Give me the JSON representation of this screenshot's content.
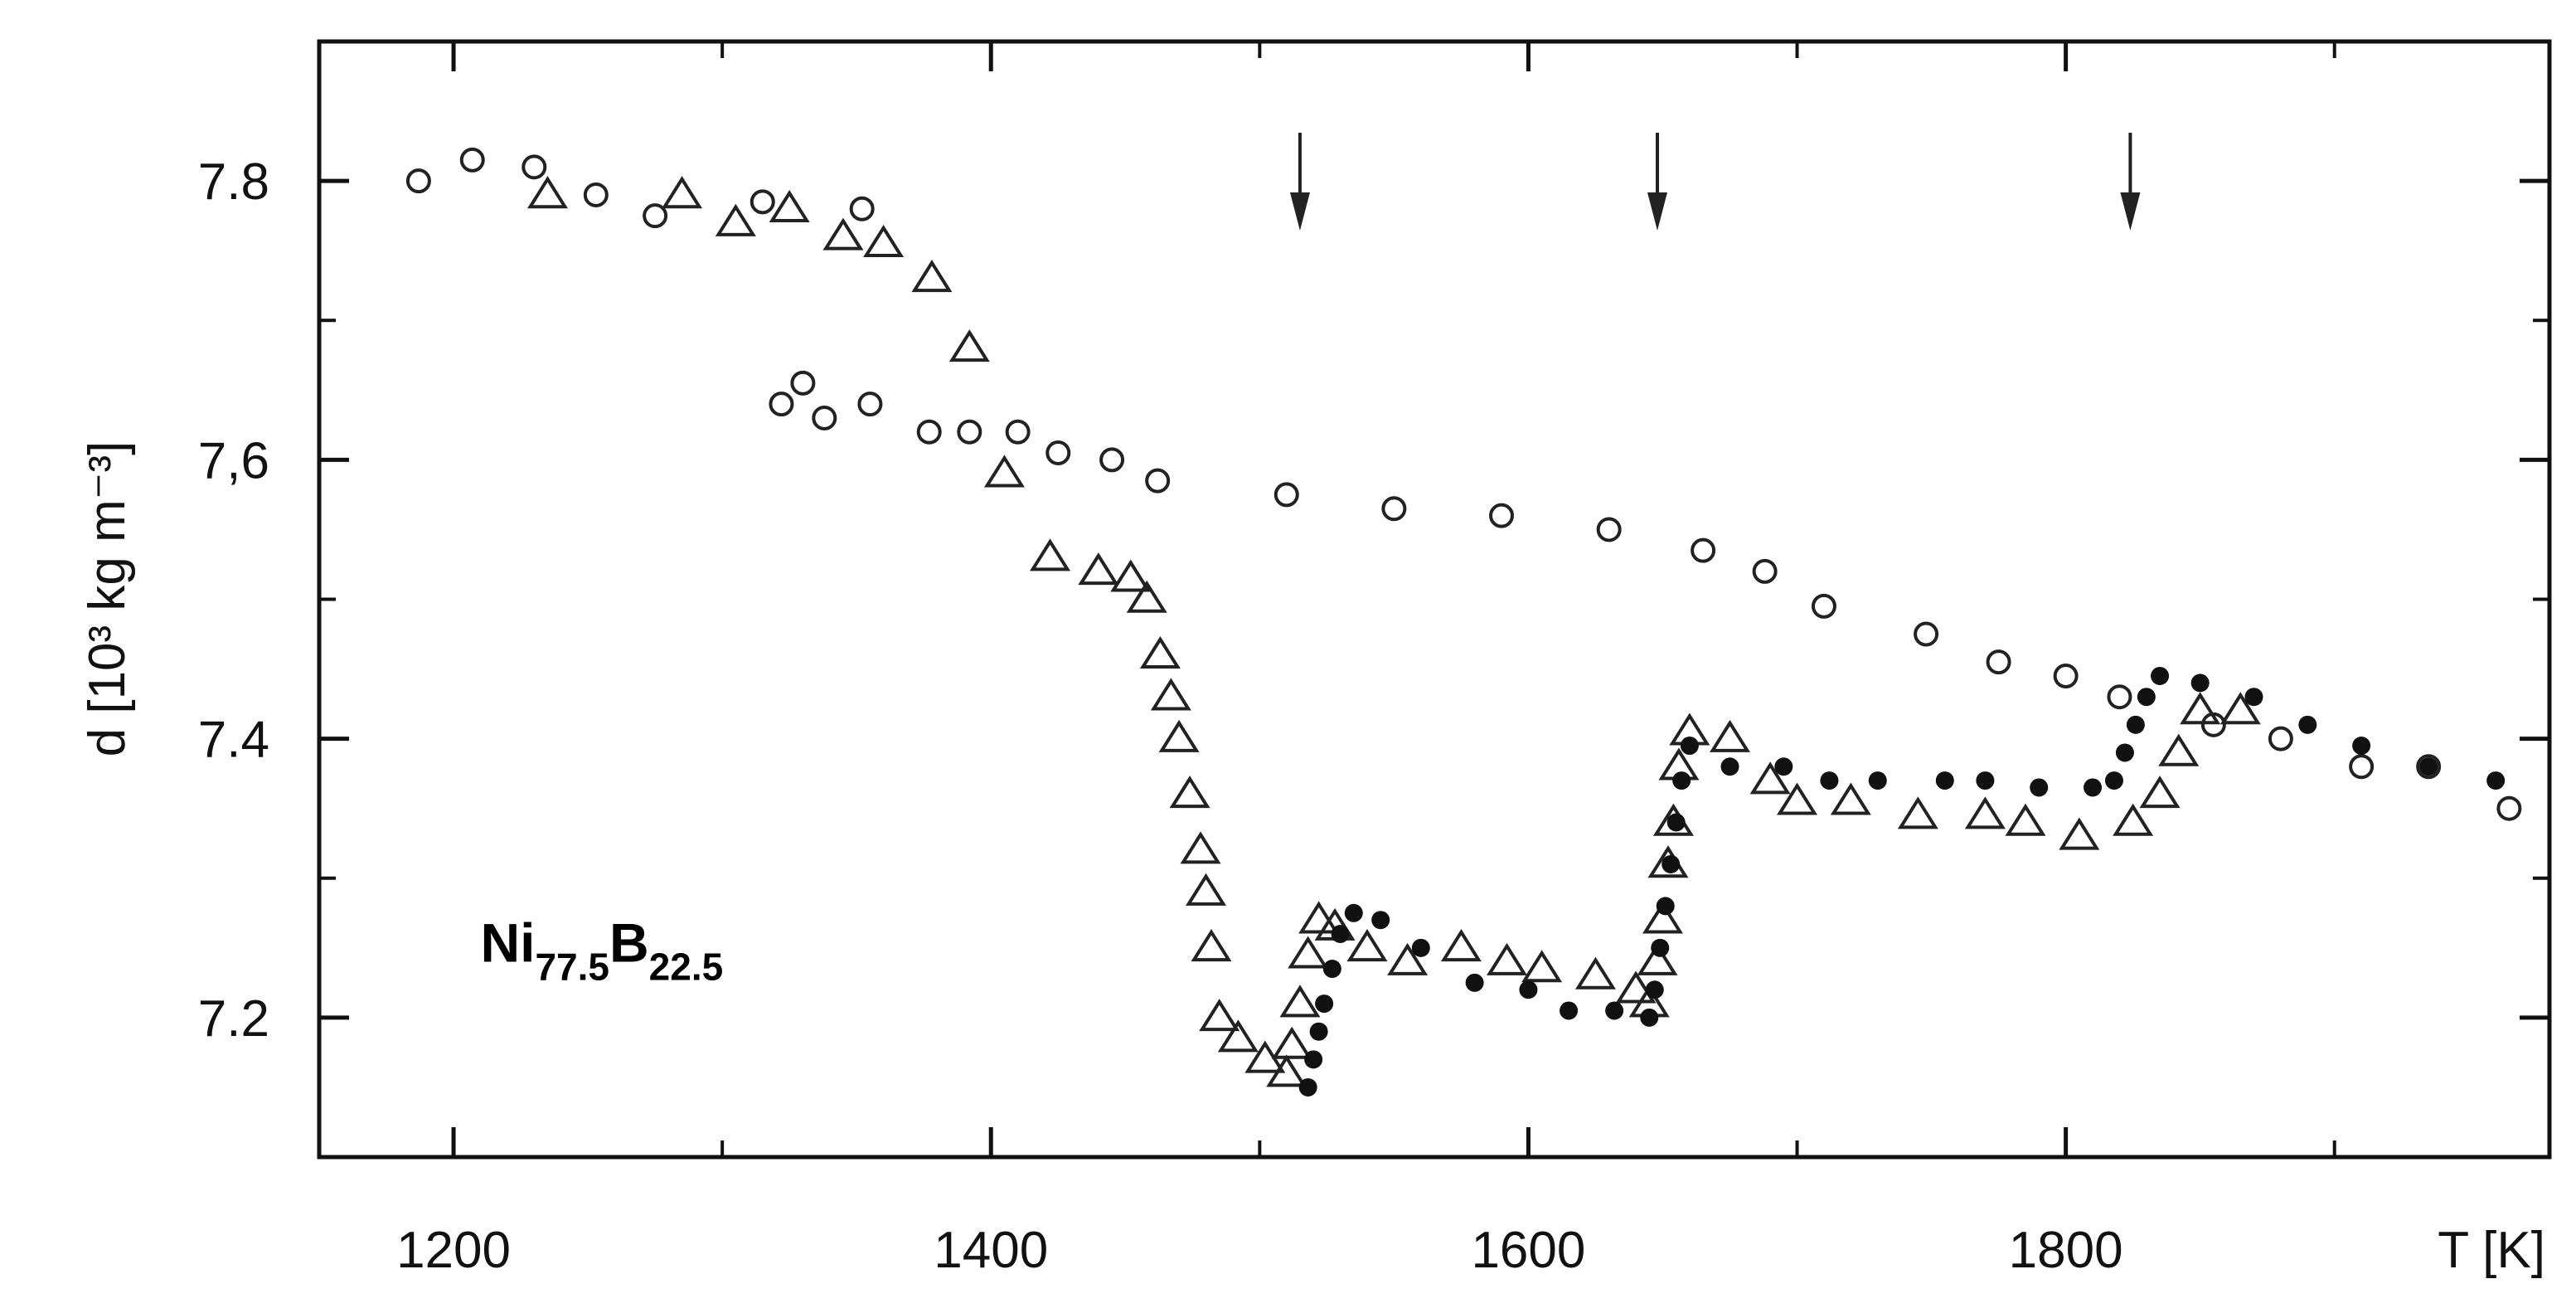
{
  "chart_data": {
    "type": "scatter",
    "title": "",
    "xlabel": "T [K]",
    "ylabel": "d [10³ kg m⁻³]",
    "xlim": [
      1150,
      1980
    ],
    "ylim": [
      7.1,
      7.9
    ],
    "xticks": [
      1200,
      1400,
      1600,
      1800
    ],
    "xtick_labels": [
      "1200",
      "1400",
      "1600",
      "1800"
    ],
    "xticks_minor": [
      1300,
      1500,
      1700,
      1900
    ],
    "yticks": [
      7.2,
      7.4,
      7.6,
      7.8
    ],
    "ytick_labels": [
      "7.2",
      "7.4",
      "7,6",
      "7.8"
    ],
    "grid": false,
    "annotation": {
      "base": "Ni",
      "sub1": "77.5",
      "mid": "B",
      "sub2": "22.5",
      "x": 1210,
      "y": 7.24
    },
    "arrows": [
      1515,
      1648,
      1824
    ],
    "series": [
      {
        "marker": "open-circle",
        "points": [
          [
            1187,
            7.8
          ],
          [
            1207,
            7.815
          ],
          [
            1230,
            7.81
          ],
          [
            1253,
            7.79
          ],
          [
            1275,
            7.775
          ],
          [
            1315,
            7.785
          ],
          [
            1352,
            7.78
          ],
          [
            1322,
            7.64
          ],
          [
            1330,
            7.655
          ],
          [
            1338,
            7.63
          ],
          [
            1355,
            7.64
          ],
          [
            1377,
            7.62
          ],
          [
            1392,
            7.62
          ],
          [
            1410,
            7.62
          ],
          [
            1425,
            7.605
          ],
          [
            1445,
            7.6
          ],
          [
            1462,
            7.585
          ],
          [
            1510,
            7.575
          ],
          [
            1550,
            7.565
          ],
          [
            1590,
            7.56
          ],
          [
            1630,
            7.55
          ],
          [
            1665,
            7.535
          ],
          [
            1688,
            7.52
          ],
          [
            1710,
            7.495
          ],
          [
            1748,
            7.475
          ],
          [
            1775,
            7.455
          ],
          [
            1800,
            7.445
          ],
          [
            1820,
            7.43
          ],
          [
            1855,
            7.41
          ],
          [
            1880,
            7.4
          ],
          [
            1910,
            7.38
          ],
          [
            1935,
            7.38
          ],
          [
            1965,
            7.35
          ]
        ]
      },
      {
        "marker": "open-triangle",
        "points": [
          [
            1235,
            7.79
          ],
          [
            1285,
            7.79
          ],
          [
            1305,
            7.77
          ],
          [
            1325,
            7.78
          ],
          [
            1345,
            7.76
          ],
          [
            1360,
            7.755
          ],
          [
            1378,
            7.73
          ],
          [
            1392,
            7.68
          ],
          [
            1405,
            7.59
          ],
          [
            1422,
            7.53
          ],
          [
            1440,
            7.52
          ],
          [
            1452,
            7.515
          ],
          [
            1458,
            7.5
          ],
          [
            1463,
            7.46
          ],
          [
            1467,
            7.43
          ],
          [
            1470,
            7.4
          ],
          [
            1474,
            7.36
          ],
          [
            1478,
            7.32
          ],
          [
            1480,
            7.29
          ],
          [
            1482,
            7.25
          ],
          [
            1485,
            7.2
          ],
          [
            1492,
            7.185
          ],
          [
            1502,
            7.17
          ],
          [
            1510,
            7.16
          ],
          [
            1512,
            7.18
          ],
          [
            1515,
            7.21
          ],
          [
            1518,
            7.245
          ],
          [
            1522,
            7.27
          ],
          [
            1528,
            7.265
          ],
          [
            1540,
            7.25
          ],
          [
            1555,
            7.24
          ],
          [
            1575,
            7.25
          ],
          [
            1592,
            7.24
          ],
          [
            1605,
            7.235
          ],
          [
            1625,
            7.23
          ],
          [
            1640,
            7.22
          ],
          [
            1645,
            7.21
          ],
          [
            1648,
            7.24
          ],
          [
            1650,
            7.27
          ],
          [
            1652,
            7.31
          ],
          [
            1654,
            7.34
          ],
          [
            1656,
            7.38
          ],
          [
            1660,
            7.405
          ],
          [
            1675,
            7.4
          ],
          [
            1690,
            7.37
          ],
          [
            1700,
            7.355
          ],
          [
            1720,
            7.355
          ],
          [
            1745,
            7.345
          ],
          [
            1770,
            7.345
          ],
          [
            1785,
            7.34
          ],
          [
            1805,
            7.33
          ],
          [
            1825,
            7.34
          ],
          [
            1835,
            7.36
          ],
          [
            1842,
            7.39
          ],
          [
            1850,
            7.42
          ],
          [
            1865,
            7.42
          ]
        ]
      },
      {
        "marker": "filled-circle",
        "points": [
          [
            1518,
            7.15
          ],
          [
            1520,
            7.17
          ],
          [
            1522,
            7.19
          ],
          [
            1524,
            7.21
          ],
          [
            1527,
            7.235
          ],
          [
            1530,
            7.26
          ],
          [
            1535,
            7.275
          ],
          [
            1545,
            7.27
          ],
          [
            1560,
            7.25
          ],
          [
            1580,
            7.225
          ],
          [
            1600,
            7.22
          ],
          [
            1615,
            7.205
          ],
          [
            1632,
            7.205
          ],
          [
            1645,
            7.2
          ],
          [
            1647,
            7.22
          ],
          [
            1649,
            7.25
          ],
          [
            1651,
            7.28
          ],
          [
            1653,
            7.31
          ],
          [
            1655,
            7.34
          ],
          [
            1657,
            7.37
          ],
          [
            1660,
            7.395
          ],
          [
            1675,
            7.38
          ],
          [
            1695,
            7.38
          ],
          [
            1712,
            7.37
          ],
          [
            1730,
            7.37
          ],
          [
            1755,
            7.37
          ],
          [
            1770,
            7.37
          ],
          [
            1790,
            7.365
          ],
          [
            1810,
            7.365
          ],
          [
            1818,
            7.37
          ],
          [
            1822,
            7.39
          ],
          [
            1826,
            7.41
          ],
          [
            1830,
            7.43
          ],
          [
            1835,
            7.445
          ],
          [
            1850,
            7.44
          ],
          [
            1870,
            7.43
          ],
          [
            1890,
            7.41
          ],
          [
            1910,
            7.395
          ],
          [
            1935,
            7.38
          ],
          [
            1960,
            7.37
          ]
        ]
      }
    ]
  }
}
